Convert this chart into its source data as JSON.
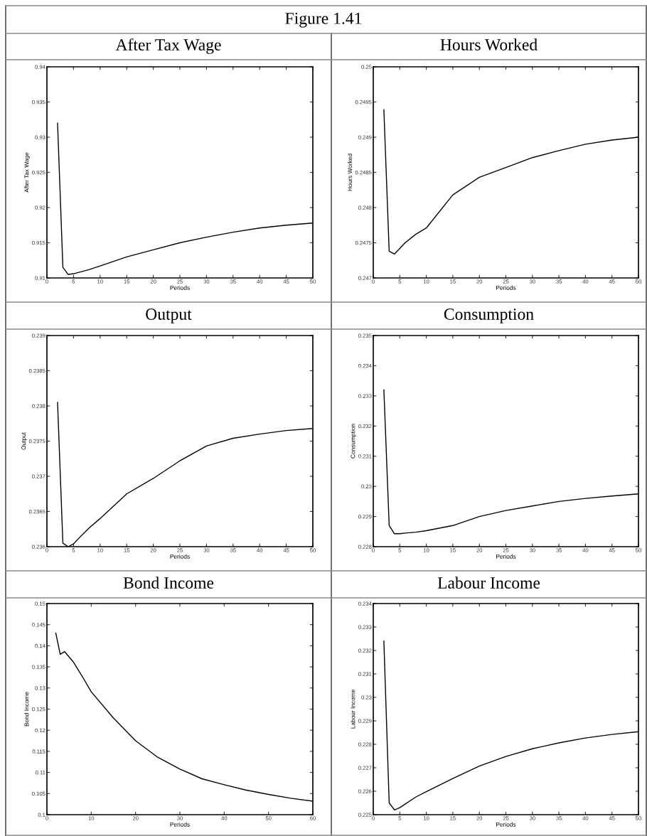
{
  "chart_data": [
    {
      "type": "line",
      "title": "After Tax Wage",
      "annotations": [
        "Figure 1.41"
      ],
      "xlabel": "Periods",
      "ylabel": "After Tax Wage",
      "color": "#000000",
      "x": [
        2,
        3,
        4,
        5,
        6,
        8,
        10,
        15,
        20,
        25,
        30,
        35,
        40,
        45,
        50
      ],
      "values": [
        0.932,
        0.9115,
        0.9105,
        0.9106,
        0.9108,
        0.9112,
        0.9117,
        0.913,
        0.914,
        0.915,
        0.9158,
        0.9165,
        0.9171,
        0.9175,
        0.9178
      ],
      "xlim": [
        0,
        50
      ],
      "xticks": [
        0,
        5,
        10,
        15,
        20,
        25,
        30,
        35,
        40,
        45,
        50
      ],
      "ylim": [
        0.91,
        0.94
      ],
      "yticks": [
        0.91,
        0.915,
        0.92,
        0.925,
        0.93,
        0.935,
        0.94
      ]
    },
    {
      "type": "line",
      "title": "Hours Worked",
      "xlabel": "Periods",
      "ylabel": "Hours Worked",
      "color": "#000000",
      "x": [
        2,
        3,
        4,
        5,
        6,
        8,
        10,
        15,
        20,
        25,
        30,
        35,
        40,
        45,
        50
      ],
      "values": [
        0.24939,
        0.24738,
        0.24734,
        0.24742,
        0.2475,
        0.24762,
        0.24771,
        0.24818,
        0.24843,
        0.24857,
        0.24871,
        0.24881,
        0.2489,
        0.24896,
        0.249
      ],
      "xlim": [
        0,
        50
      ],
      "xticks": [
        0,
        5,
        10,
        15,
        20,
        25,
        30,
        35,
        40,
        45,
        50
      ],
      "ylim": [
        0.247,
        0.25
      ],
      "yticks": [
        0.247,
        0.2475,
        0.248,
        0.2485,
        0.249,
        0.2495,
        0.25
      ]
    },
    {
      "type": "line",
      "title": "Output",
      "xlabel": "Periods",
      "ylabel": "Output",
      "color": "#000000",
      "x": [
        2,
        3,
        4,
        5,
        6,
        8,
        10,
        15,
        20,
        25,
        30,
        35,
        40,
        45,
        50
      ],
      "values": [
        0.23805,
        0.23605,
        0.236,
        0.23604,
        0.23612,
        0.23627,
        0.2364,
        0.23675,
        0.23697,
        0.23722,
        0.23743,
        0.23754,
        0.2376,
        0.23765,
        0.23768
      ],
      "xlim": [
        0,
        50
      ],
      "xticks": [
        0,
        5,
        10,
        15,
        20,
        25,
        30,
        35,
        40,
        45,
        50
      ],
      "ylim": [
        0.236,
        0.239
      ],
      "yticks": [
        0.236,
        0.2365,
        0.237,
        0.2375,
        0.238,
        0.2385,
        0.239
      ]
    },
    {
      "type": "line",
      "title": "Consumption",
      "xlabel": "Periods",
      "ylabel": "Consumption",
      "color": "#000000",
      "x": [
        2,
        3,
        4,
        5,
        6,
        8,
        10,
        15,
        20,
        25,
        30,
        35,
        40,
        45,
        50
      ],
      "values": [
        0.2332,
        0.2287,
        0.22843,
        0.22843,
        0.22845,
        0.22848,
        0.22853,
        0.2287,
        0.229,
        0.2292,
        0.22935,
        0.2295,
        0.2296,
        0.22968,
        0.22975
      ],
      "xlim": [
        0,
        50
      ],
      "xticks": [
        0,
        5,
        10,
        15,
        20,
        25,
        30,
        35,
        40,
        45,
        50
      ],
      "ylim": [
        0.228,
        0.235
      ],
      "yticks": [
        0.228,
        0.229,
        0.23,
        0.231,
        0.232,
        0.233,
        0.234,
        0.235
      ]
    },
    {
      "type": "line",
      "title": "Bond Income",
      "xlabel": "Periods",
      "ylabel": "Bond Income",
      "color": "#000000",
      "x": [
        2,
        3,
        4,
        6,
        8,
        10,
        15,
        20,
        25,
        30,
        35,
        40,
        45,
        50,
        55,
        60
      ],
      "values": [
        0.143,
        0.138,
        0.1386,
        0.1361,
        0.1327,
        0.1291,
        0.1229,
        0.1175,
        0.1136,
        0.1108,
        0.1085,
        0.1071,
        0.1058,
        0.1048,
        0.1039,
        0.1032
      ],
      "xlim": [
        0,
        60
      ],
      "xticks": [
        0,
        10,
        20,
        30,
        40,
        50,
        60
      ],
      "ylim": [
        0.1,
        0.15
      ],
      "yticks": [
        0.1,
        0.105,
        0.11,
        0.115,
        0.12,
        0.125,
        0.13,
        0.135,
        0.14,
        0.145,
        0.15
      ]
    },
    {
      "type": "line",
      "title": "Labour Income",
      "xlabel": "Periods",
      "ylabel": "Labour Income",
      "color": "#000000",
      "x": [
        2,
        3,
        4,
        5,
        6,
        8,
        10,
        15,
        20,
        25,
        30,
        35,
        40,
        45,
        50
      ],
      "values": [
        0.2324,
        0.2255,
        0.2252,
        0.2253,
        0.22545,
        0.22575,
        0.22598,
        0.22654,
        0.22707,
        0.22748,
        0.22781,
        0.22806,
        0.22827,
        0.22842,
        0.22854
      ],
      "xlim": [
        0,
        50
      ],
      "xticks": [
        0,
        5,
        10,
        15,
        20,
        25,
        30,
        35,
        40,
        45,
        50
      ],
      "ylim": [
        0.225,
        0.234
      ],
      "yticks": [
        0.225,
        0.226,
        0.227,
        0.228,
        0.229,
        0.23,
        0.231,
        0.232,
        0.233,
        0.234
      ]
    }
  ]
}
